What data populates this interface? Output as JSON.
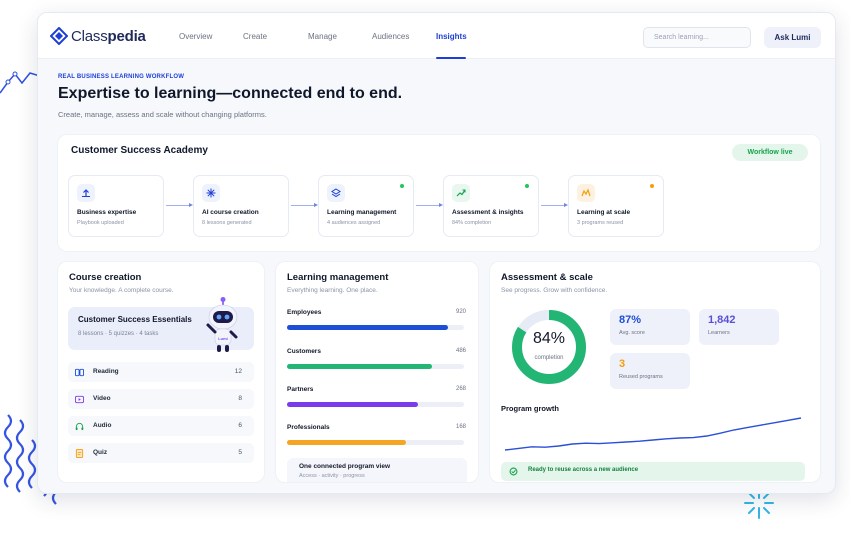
{
  "brand": {
    "name_light": "Class",
    "name_bold": "pedia"
  },
  "nav": {
    "items": [
      {
        "label": "Overview",
        "active": false
      },
      {
        "label": "Create",
        "active": false
      },
      {
        "label": "Manage",
        "active": false
      },
      {
        "label": "Audiences",
        "active": false
      },
      {
        "label": "Insights",
        "active": true
      }
    ],
    "search_placeholder": "Search learning...",
    "ask_label": "Ask Lumi"
  },
  "hero": {
    "kicker": "REAL BUSINESS LEARNING WORKFLOW",
    "title": "Expertise to learning—connected end to end.",
    "subtitle": "Create, manage, assess and scale without changing platforms."
  },
  "workflow": {
    "title": "Customer Success Academy",
    "badge": "Workflow live",
    "steps": [
      {
        "title": "Business expertise",
        "sub": "Playbook uploaded",
        "icon": "upload-icon",
        "status": "none"
      },
      {
        "title": "AI course creation",
        "sub": "8 lessons generated",
        "icon": "sparkle-icon",
        "status": "none"
      },
      {
        "title": "Learning management",
        "sub": "4 audiences assigned",
        "icon": "layers-icon",
        "status": "#22c55e"
      },
      {
        "title": "Assessment & insights",
        "sub": "84% completion",
        "icon": "trend-icon",
        "status": "#22c55e"
      },
      {
        "title": "Learning at scale",
        "sub": "3 programs reused",
        "icon": "scale-icon",
        "status": "#f59e0b"
      }
    ]
  },
  "course": {
    "title": "Course creation",
    "subtitle": "Your knowledge. A complete course.",
    "hero_title": "Customer Success Essentials",
    "hero_sub": "8 lessons · 5 quizzes · 4 tasks",
    "robot_label": "Lumi",
    "rows": [
      {
        "label": "Reading",
        "count": "12",
        "icon": "book-icon",
        "color": "#1d4ed8"
      },
      {
        "label": "Video",
        "count": "8",
        "icon": "video-icon",
        "color": "#7c3aed"
      },
      {
        "label": "Audio",
        "count": "6",
        "icon": "headphones-icon",
        "color": "#16a34a"
      },
      {
        "label": "Quiz",
        "count": "5",
        "icon": "quiz-icon",
        "color": "#f59e0b"
      }
    ]
  },
  "learning": {
    "title": "Learning management",
    "subtitle": "Everything learning. One place.",
    "bars": [
      {
        "label": "Employees",
        "count": "920",
        "fraction": 0.91,
        "color": "#1d4ed8"
      },
      {
        "label": "Customers",
        "count": "486",
        "fraction": 0.82,
        "color": "#22b573"
      },
      {
        "label": "Partners",
        "count": "268",
        "fraction": 0.74,
        "color": "#7c3aed"
      },
      {
        "label": "Professionals",
        "count": "168",
        "fraction": 0.67,
        "color": "#f5a524"
      }
    ],
    "footer_title": "One connected program view",
    "footer_sub": "Access · activity · progress"
  },
  "assessment": {
    "title": "Assessment & scale",
    "subtitle": "See progress. Grow with confidence.",
    "completion_pct": 84,
    "completion_text": "84%",
    "completion_caption": "completion",
    "stats": [
      {
        "value": "87%",
        "label": "Avg. score",
        "color": "#1d4ed8"
      },
      {
        "value": "1,842",
        "label": "Learners",
        "color": "#5b4fd6"
      },
      {
        "value": "3",
        "label": "Reused programs",
        "color": "#f59e0b"
      }
    ],
    "growth_title": "Program growth",
    "growth_values": [
      0.1,
      0.14,
      0.18,
      0.17,
      0.2,
      0.25,
      0.27,
      0.26,
      0.28,
      0.3,
      0.32,
      0.35,
      0.38,
      0.4,
      0.41,
      0.45,
      0.52,
      0.6,
      0.66,
      0.72,
      0.78,
      0.84,
      0.9
    ],
    "reuse_text": "Ready to reuse across a new audience"
  },
  "colors": {
    "accent": "#1d3fd6",
    "success": "#22b573",
    "warning": "#f5a524"
  }
}
